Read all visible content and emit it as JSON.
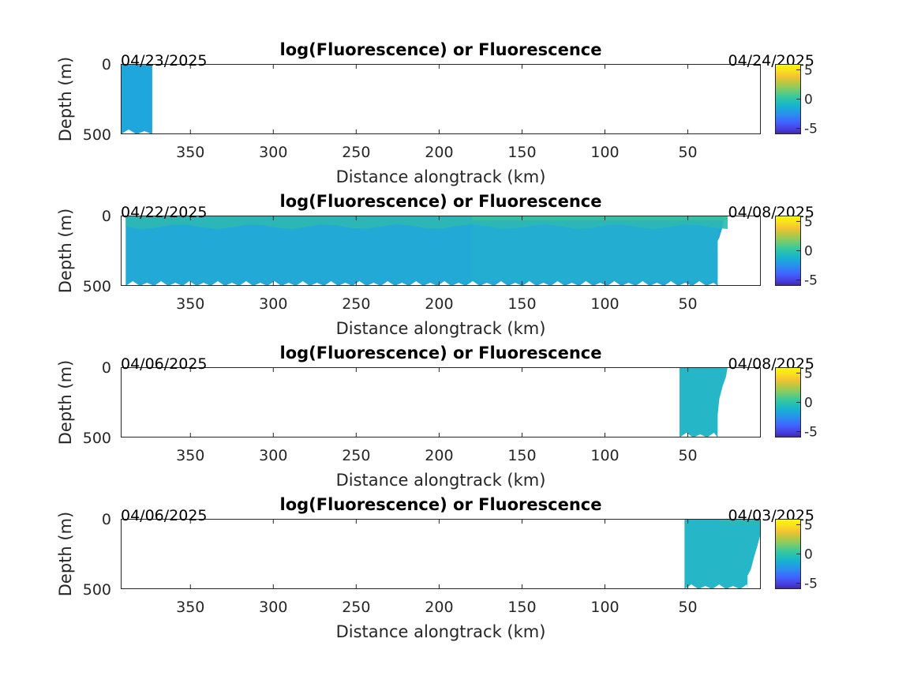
{
  "figure": {
    "background": "#ffffff",
    "palette": [
      "#3e26a8",
      "#4744e8",
      "#3e67fc",
      "#2d8bef",
      "#1ba8dc",
      "#1fbdba",
      "#3ec998",
      "#7ccb6c",
      "#b9c744",
      "#f1c332",
      "#fbe01d",
      "#f9fb0e"
    ],
    "plot_fill_colors": {
      "deep_water": "#1ea6dd",
      "mid_water": "#22a9d6",
      "shallow_water": "#25b7c8",
      "near_surface": "#2eb8b2",
      "surface_bloom": "#38c29e"
    }
  },
  "chart_data": [
    {
      "type": "heatmap",
      "title": "log(Fluorescence) or Fluorescence",
      "xlabel": "Distance alongtrack (km)",
      "ylabel": "Depth (m)",
      "xlim": [
        392,
        6
      ],
      "ylim": [
        0,
        500
      ],
      "x_reversed": true,
      "y_reversed": true,
      "xticks": [
        350,
        300,
        250,
        200,
        150,
        100,
        50
      ],
      "yticks": [
        0,
        500
      ],
      "start_date": "04/23/2025",
      "end_date": "04/24/2025",
      "colorbar": {
        "ticks": [
          -5,
          0,
          5
        ],
        "range": [
          -6,
          6
        ]
      },
      "data_extent_km": [
        392,
        373
      ],
      "data_extent_depth_m": [
        0,
        500
      ],
      "surface_layer": false
    },
    {
      "type": "heatmap",
      "title": "log(Fluorescence) or Fluorescence",
      "xlabel": "Distance alongtrack (km)",
      "ylabel": "Depth (m)",
      "xlim": [
        392,
        6
      ],
      "ylim": [
        0,
        500
      ],
      "x_reversed": true,
      "y_reversed": true,
      "xticks": [
        350,
        300,
        250,
        200,
        150,
        100,
        50
      ],
      "yticks": [
        0,
        500
      ],
      "start_date": "04/22/2025",
      "end_date": "04/08/2025",
      "colorbar": {
        "ticks": [
          -5,
          0,
          5
        ],
        "range": [
          -6,
          6
        ]
      },
      "data_extent_km": [
        389,
        26
      ],
      "data_extent_depth_m": [
        0,
        500
      ],
      "surface_layer": true
    },
    {
      "type": "heatmap",
      "title": "log(Fluorescence) or Fluorescence",
      "xlabel": "Distance alongtrack (km)",
      "ylabel": "Depth (m)",
      "xlim": [
        392,
        6
      ],
      "ylim": [
        0,
        500
      ],
      "x_reversed": true,
      "y_reversed": true,
      "xticks": [
        350,
        300,
        250,
        200,
        150,
        100,
        50
      ],
      "yticks": [
        0,
        500
      ],
      "start_date": "04/06/2025",
      "end_date": "04/08/2025",
      "colorbar": {
        "ticks": [
          -5,
          0,
          5
        ],
        "range": [
          -6,
          6
        ]
      },
      "data_extent_km": [
        55,
        26
      ],
      "data_extent_depth_m": [
        0,
        500
      ],
      "surface_layer": false
    },
    {
      "type": "heatmap",
      "title": "log(Fluorescence) or Fluorescence",
      "xlabel": "Distance alongtrack (km)",
      "ylabel": "Depth (m)",
      "xlim": [
        392,
        6
      ],
      "ylim": [
        0,
        500
      ],
      "x_reversed": true,
      "y_reversed": true,
      "xticks": [
        350,
        300,
        250,
        200,
        150,
        100,
        50
      ],
      "yticks": [
        0,
        500
      ],
      "start_date": "04/06/2025",
      "end_date": "04/03/2025",
      "colorbar": {
        "ticks": [
          -5,
          0,
          5
        ],
        "range": [
          -6,
          6
        ]
      },
      "data_extent_km": [
        52,
        6
      ],
      "data_extent_depth_m": [
        0,
        500
      ],
      "surface_layer": false
    }
  ]
}
